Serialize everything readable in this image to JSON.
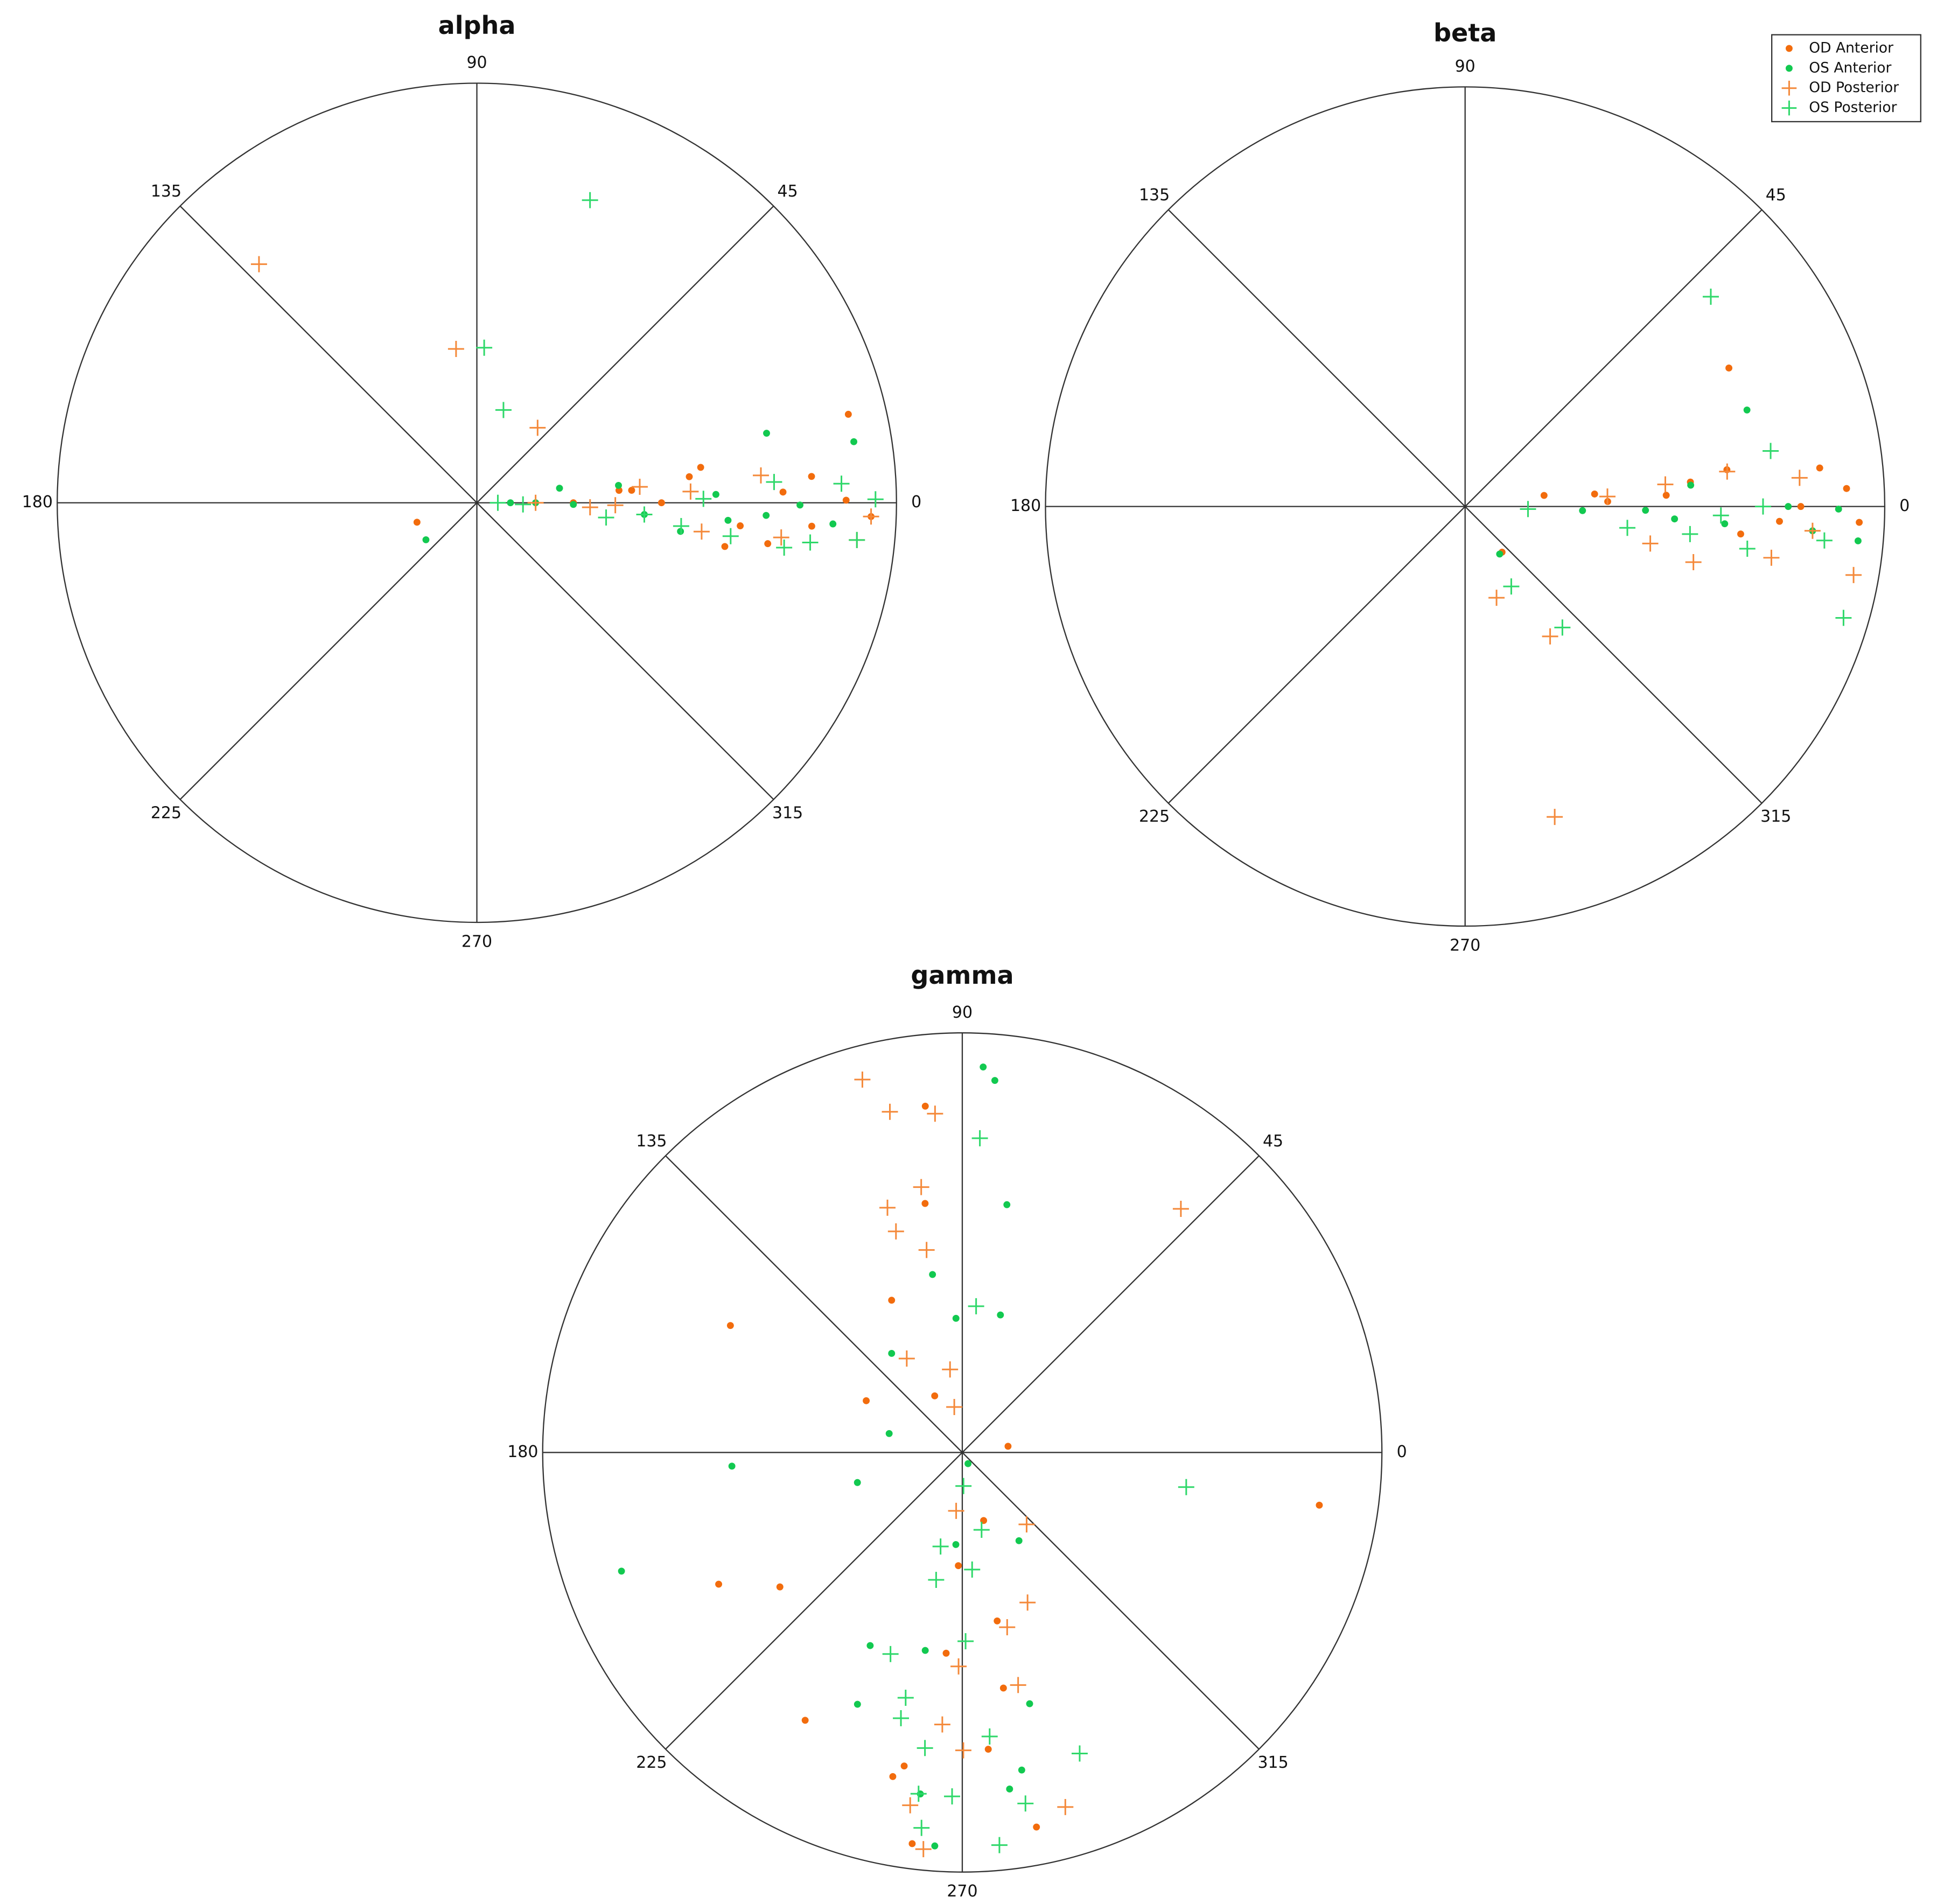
{
  "chart_data": [
    {
      "type": "polar",
      "title": "alpha",
      "thetaticks": [
        0,
        45,
        90,
        135,
        180,
        225,
        270,
        315
      ],
      "rlim": [
        0,
        1
      ],
      "series": [
        {
          "color": "#f26c0d",
          "marker": "dot",
          "theta": [
            13.4,
            9,
            7,
            4.5,
            198,
            5,
            0,
            350,
            352,
            358,
            0.4,
            0,
            4.6,
            355,
            356,
            2
          ],
          "r": [
            0.91,
            0.54,
            0.51,
            0.8,
            0.15,
            0.34,
            0.23,
            0.6,
            0.7,
            0.94,
            0.88,
            0.44,
            0.37,
            0.63,
            0.8,
            0.73
          ]
        },
        {
          "color": "#12c950",
          "marker": "dot",
          "theta": [
            13.5,
            9.2,
            216,
            10,
            7,
            359,
            356,
            352,
            2,
            357.5,
            359.6,
            356.6,
            0,
            0,
            356
          ],
          "r": [
            0.71,
            0.91,
            0.15,
            0.2,
            0.34,
            0.23,
            0.4,
            0.49,
            0.57,
            0.69,
            0.77,
            0.85,
            0.08,
            0.14,
            0.6
          ]
        },
        {
          "color": "#f4893a",
          "marker": "plus",
          "theta": [
            132.4,
            97.7,
            51,
            5.6,
            3,
            5.5,
            352.7,
            353.5,
            359,
            357.7,
            354.4,
            0,
            358
          ],
          "r": [
            0.77,
            0.37,
            0.23,
            0.39,
            0.51,
            0.68,
            0.54,
            0.73,
            0.33,
            0.27,
            0.91,
            0.14,
            0.94
          ]
        },
        {
          "color": "#2fd86a",
          "marker": "plus",
          "theta": [
            69.5,
            87.3,
            74,
            358,
            353.5,
            353.5,
            352.5,
            351.7,
            353.2,
            3,
            0.5,
            354.4,
            4,
            0,
            356,
            1
          ],
          "r": [
            0.77,
            0.37,
            0.23,
            0.11,
            0.31,
            0.49,
            0.61,
            0.74,
            0.8,
            0.87,
            0.95,
            0.91,
            0.71,
            0.05,
            0.4,
            0.54
          ]
        }
      ]
    },
    {
      "type": "polar",
      "title": "beta",
      "thetaticks": [
        0,
        45,
        90,
        135,
        180,
        225,
        270,
        315
      ],
      "rlim": [
        0,
        1
      ],
      "legend": "upper right",
      "series": [
        {
          "name": "OD Anterior",
          "color": "#f26c0d",
          "marker": "dot",
          "theta": [
            27.7,
            6.2,
            8,
            357.7,
            2.7,
            8,
            2,
            3.2,
            357.3,
            309,
            354.3,
            5.5,
            6.2,
            0
          ],
          "r": [
            0.71,
            0.85,
            0.63,
            0.94,
            0.91,
            0.19,
            0.34,
            0.48,
            0.75,
            0.14,
            0.66,
            0.31,
            0.54,
            0.8
          ]
        },
        {
          "name": "OS Anterior",
          "color": "#12c950",
          "marker": "dot",
          "theta": [
            18.9,
            5.4,
            355,
            306,
            358,
            358.8,
            356.2,
            0,
            356,
            356.6,
            359.6
          ],
          "r": [
            0.71,
            0.54,
            0.94,
            0.14,
            0.28,
            0.43,
            0.62,
            0.77,
            0.83,
            0.5,
            0.89
          ]
        },
        {
          "name": "OD Posterior",
          "color": "#f4893a",
          "marker": "plus",
          "theta": [
            286.1,
            303.2,
            289,
            346.3,
            7.6,
            4.9,
            350,
            350.5,
            348.7,
            4,
            6.3,
            356
          ],
          "r": [
            0.77,
            0.37,
            0.23,
            0.56,
            0.63,
            0.8,
            0.94,
            0.74,
            0.45,
            0.34,
            0.48,
            0.83
          ]
        },
        {
          "name": "OS Posterior",
          "color": "#2fd86a",
          "marker": "plus",
          "theta": [
            40.5,
            10.3,
            343.6,
            308.8,
            300,
            352.5,
            353,
            351.5,
            354.6,
            0,
            357.7,
            358
          ],
          "r": [
            0.77,
            0.74,
            0.94,
            0.37,
            0.22,
            0.39,
            0.54,
            0.68,
            0.86,
            0.71,
            0.15,
            0.61
          ]
        }
      ]
    },
    {
      "type": "polar",
      "title": "gamma",
      "thetaticks": [
        0,
        45,
        90,
        135,
        180,
        225,
        270,
        315
      ],
      "rlim": [
        0,
        1
      ],
      "series": [
        {
          "color": "#f26c0d",
          "marker": "dot",
          "theta": [
            351.6,
            151.3,
            208.4,
            216.4,
            239.6,
            96.1,
            98.5,
            114.9,
            151.7,
            7.7,
            287.4,
            281.7,
            279.9,
            275,
            281.2,
            257.9,
            262.7,
            268,
            116,
            265.4,
            259.5
          ],
          "r": [
            0.86,
            0.63,
            0.66,
            0.54,
            0.74,
            0.83,
            0.6,
            0.4,
            0.26,
            0.11,
            0.17,
            0.41,
            0.57,
            0.71,
            0.91,
            0.79,
            0.94,
            0.27,
            0.15,
            0.48,
            0.76
          ]
        },
        {
          "color": "#12c950",
          "marker": "dot",
          "theta": [
            86.9,
            85,
            79.8,
            74.5,
            92.7,
            99.5,
            125.5,
            165.5,
            183.4,
            199.2,
            196,
            247.4,
            244.5,
            259.4,
            266,
            302.7,
            285,
            280.6,
            278,
            266,
            263,
            297
          ],
          "r": [
            0.92,
            0.89,
            0.6,
            0.34,
            0.32,
            0.43,
            0.29,
            0.18,
            0.55,
            0.86,
            0.26,
            0.65,
            0.51,
            0.48,
            0.22,
            0.25,
            0.62,
            0.77,
            0.81,
            0.94,
            0.82,
            0.03
          ]
        },
        {
          "color": "#f4893a",
          "marker": "plus",
          "theta": [
            105,
            102,
            94.6,
            98.8,
            107,
            106.7,
            100,
            120.6,
            98.4,
            100,
            48.1,
            311.8,
            293.5,
            284.4,
            283.5,
            286.2,
            264.4,
            261.6,
            265.8,
            270.2,
            264,
            269
          ],
          "r": [
            0.92,
            0.83,
            0.81,
            0.64,
            0.61,
            0.55,
            0.49,
            0.26,
            0.2,
            0.11,
            0.78,
            0.23,
            0.39,
            0.43,
            0.57,
            0.88,
            0.95,
            0.85,
            0.65,
            0.71,
            0.14,
            0.51
          ]
        },
        {
          "color": "#2fd86a",
          "marker": "plus",
          "theta": [
            86.8,
            84.6,
            351.2,
            291.3,
            275.4,
            280.2,
            263.8,
            262.7,
            250.4,
            257,
            257,
            258.4,
            274.8,
            268.3,
            275.5,
            284,
            271,
            257,
            262.8,
            272
          ],
          "r": [
            0.75,
            0.35,
            0.54,
            0.77,
            0.94,
            0.85,
            0.9,
            0.82,
            0.51,
            0.65,
            0.6,
            0.31,
            0.28,
            0.82,
            0.68,
            0.19,
            0.45,
            0.23,
            0.71,
            0.08
          ]
        }
      ]
    }
  ]
}
